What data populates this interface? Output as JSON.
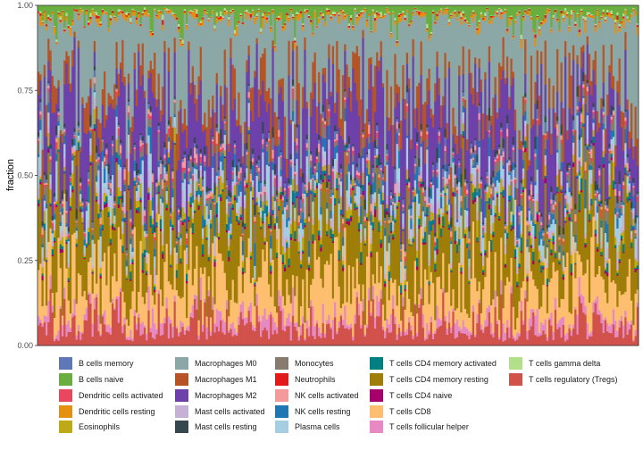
{
  "chart_data": {
    "type": "bar",
    "stacked": true,
    "title": "",
    "xlabel": "",
    "ylabel": "fraction",
    "ylim": [
      0,
      1
    ],
    "y_ticks": [
      {
        "value": 0,
        "label": "0.00"
      },
      {
        "value": 0.25,
        "label": "0.25"
      },
      {
        "value": 0.5,
        "label": "0.50"
      },
      {
        "value": 0.75,
        "label": "0.75"
      },
      {
        "value": 1,
        "label": "1.00"
      }
    ],
    "n_samples": 300,
    "legend_position": "bottom",
    "legend_columns": 5,
    "series": [
      {
        "name": "T cells regulatory (Tregs)",
        "color": "#D1514B",
        "mean": 0.06
      },
      {
        "name": "T cells follicular helper",
        "color": "#E78AC3",
        "mean": 0.025
      },
      {
        "name": "T cells CD8",
        "color": "#FDBF6F",
        "mean": 0.1
      },
      {
        "name": "T cells CD4 memory resting",
        "color": "#9E7D08",
        "mean": 0.16
      },
      {
        "name": "T cells CD4 naive",
        "color": "#A6006B",
        "mean": 0.005
      },
      {
        "name": "T cells CD4 memory activated",
        "color": "#008080",
        "mean": 0.012
      },
      {
        "name": "Eosinophils",
        "color": "#BDAA16",
        "mean": 0.02
      },
      {
        "name": "Mast cells activated",
        "color": "#C7B0D6",
        "mean": 0.02
      },
      {
        "name": "Plasma cells",
        "color": "#A6CEE3",
        "mean": 0.04
      },
      {
        "name": "NK cells resting",
        "color": "#1F78B4",
        "mean": 0.02
      },
      {
        "name": "Monocytes",
        "color": "#877A6F",
        "mean": 0.02
      },
      {
        "name": "Dendritic cells activated",
        "color": "#E8475F",
        "mean": 0.008
      },
      {
        "name": "NK cells activated",
        "color": "#F59A9A",
        "mean": 0.01
      },
      {
        "name": "B cells memory",
        "color": "#6077B7",
        "mean": 0.012
      },
      {
        "name": "Mast cells resting",
        "color": "#37474F",
        "mean": 0.012
      },
      {
        "name": "Macrophages M2",
        "color": "#6E40AA",
        "mean": 0.18
      },
      {
        "name": "Macrophages M1",
        "color": "#B75427",
        "mean": 0.06
      },
      {
        "name": "Macrophages M0",
        "color": "#8BA8A6",
        "mean": 0.2
      },
      {
        "name": "Dendritic cells resting",
        "color": "#E69012",
        "mean": 0.01
      },
      {
        "name": "Neutrophils",
        "color": "#E31A1C",
        "mean": 0.003
      },
      {
        "name": "T cells gamma delta",
        "color": "#B2DF8A",
        "mean": 0.004
      },
      {
        "name": "B cells naive",
        "color": "#6AAE40",
        "mean": 0.03
      }
    ],
    "legend_entries": [
      {
        "label": "B cells memory",
        "color": "#6077B7"
      },
      {
        "label": "B cells naive",
        "color": "#6AAE40"
      },
      {
        "label": "Dendritic cells activated",
        "color": "#E8475F"
      },
      {
        "label": "Dendritic cells resting",
        "color": "#E69012"
      },
      {
        "label": "Eosinophils",
        "color": "#BDAA16"
      },
      {
        "label": "Macrophages M0",
        "color": "#8BA8A6"
      },
      {
        "label": "Macrophages M1",
        "color": "#B75427"
      },
      {
        "label": "Macrophages M2",
        "color": "#6E40AA"
      },
      {
        "label": "Mast cells activated",
        "color": "#C7B0D6"
      },
      {
        "label": "Mast cells resting",
        "color": "#37474F"
      },
      {
        "label": "Monocytes",
        "color": "#877A6F"
      },
      {
        "label": "Neutrophils",
        "color": "#E31A1C"
      },
      {
        "label": "NK cells activated",
        "color": "#F59A9A"
      },
      {
        "label": "NK cells resting",
        "color": "#1F78B4"
      },
      {
        "label": "Plasma cells",
        "color": "#A6CEE3"
      },
      {
        "label": "T cells CD4 memory activated",
        "color": "#008080"
      },
      {
        "label": "T cells CD4 memory resting",
        "color": "#9E7D08"
      },
      {
        "label": "T cells CD4 naive",
        "color": "#A6006B"
      },
      {
        "label": "T cells CD8",
        "color": "#FDBF6F"
      },
      {
        "label": "T cells follicular helper",
        "color": "#E78AC3"
      },
      {
        "label": "T cells gamma delta",
        "color": "#B2DF8A"
      },
      {
        "label": "T cells regulatory (Tregs)",
        "color": "#D1514B"
      }
    ]
  }
}
